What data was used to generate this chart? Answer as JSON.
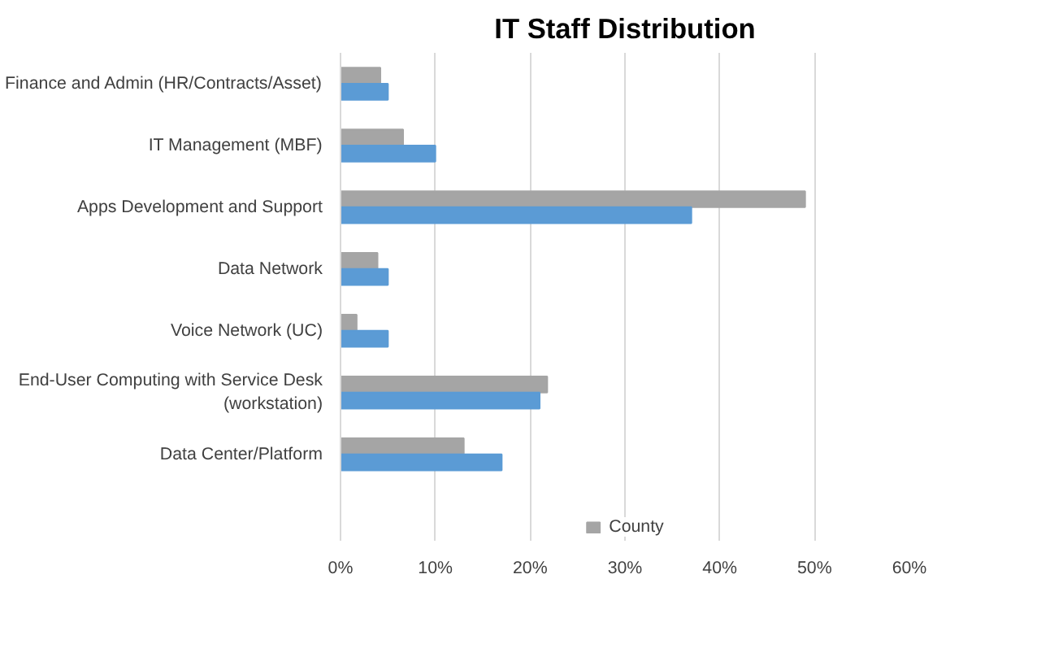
{
  "chart_data": {
    "type": "bar",
    "orientation": "horizontal",
    "title": "IT Staff Distribution",
    "categories": [
      "Finance and Admin (HR/Contracts/Asset)",
      "IT Management (MBF)",
      "Apps Development and Support",
      "Data Network",
      "Voice Network (UC)",
      "End-User Computing with Service Desk\n(workstation)",
      "Data Center/Platform"
    ],
    "series": [
      {
        "name": "County",
        "color": "#a5a5a5",
        "values": [
          4.2,
          6.6,
          49,
          3.9,
          1.7,
          21.8,
          13
        ]
      },
      {
        "color": "#5b9bd5",
        "values": [
          5,
          10,
          37,
          5,
          5,
          21,
          17
        ]
      }
    ],
    "xlim": [
      0,
      60
    ],
    "xticks": [
      {
        "value": 0,
        "label": "0%"
      },
      {
        "value": 10,
        "label": "10%"
      },
      {
        "value": 20,
        "label": "20%"
      },
      {
        "value": 30,
        "label": "30%"
      },
      {
        "value": 40,
        "label": "40%"
      },
      {
        "value": 50,
        "label": "50%"
      },
      {
        "value": 60,
        "label": "60%"
      }
    ],
    "grid": "x",
    "legend": "bottom"
  }
}
